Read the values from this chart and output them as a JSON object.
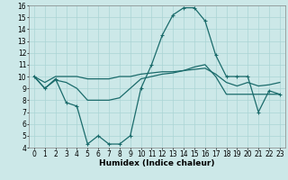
{
  "xlabel": "Humidex (Indice chaleur)",
  "x": [
    0,
    1,
    2,
    3,
    4,
    5,
    6,
    7,
    8,
    9,
    10,
    11,
    12,
    13,
    14,
    15,
    16,
    17,
    18,
    19,
    20,
    21,
    22,
    23
  ],
  "line1": [
    10,
    9,
    9.8,
    7.8,
    7.5,
    4.3,
    5.0,
    4.3,
    4.3,
    5.0,
    9.0,
    11.0,
    13.5,
    15.2,
    15.8,
    15.8,
    14.7,
    11.8,
    10.0,
    10.0,
    10.0,
    7.0,
    8.8,
    8.5
  ],
  "line2": [
    10,
    9,
    9.7,
    9.5,
    9.0,
    8.0,
    8.0,
    8.0,
    8.2,
    9.0,
    9.8,
    10.0,
    10.2,
    10.3,
    10.5,
    10.8,
    11.0,
    10.0,
    8.5,
    8.5,
    8.5,
    8.5,
    8.5,
    8.5
  ],
  "line3": [
    10,
    9.5,
    10.0,
    10.0,
    10.0,
    9.8,
    9.8,
    9.8,
    10.0,
    10.0,
    10.2,
    10.3,
    10.4,
    10.4,
    10.5,
    10.6,
    10.7,
    10.2,
    9.5,
    9.2,
    9.5,
    9.2,
    9.3,
    9.5
  ],
  "bg_color": "#cce8e8",
  "line_color": "#1a6b6b",
  "grid_color": "#aad4d4",
  "ylim": [
    4,
    16
  ],
  "xlim": [
    -0.5,
    23.5
  ],
  "yticks": [
    4,
    5,
    6,
    7,
    8,
    9,
    10,
    11,
    12,
    13,
    14,
    15,
    16
  ],
  "xticks": [
    0,
    1,
    2,
    3,
    4,
    5,
    6,
    7,
    8,
    9,
    10,
    11,
    12,
    13,
    14,
    15,
    16,
    17,
    18,
    19,
    20,
    21,
    22,
    23
  ],
  "tick_fontsize": 5.5,
  "xlabel_fontsize": 6.5
}
